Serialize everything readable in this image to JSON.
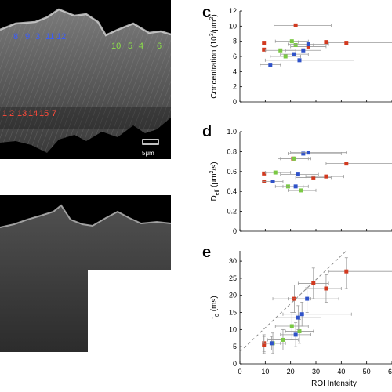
{
  "panels": {
    "c": "c",
    "d": "d",
    "e": "e"
  },
  "micrograph": {
    "scale_bar_label": "5μm",
    "labels_blue": [
      "8",
      "9",
      "3",
      "11",
      "12"
    ],
    "labels_green": [
      "10",
      "5",
      "4",
      "6"
    ],
    "labels_red": [
      "1",
      "2",
      "13",
      "14",
      "15",
      "7"
    ]
  },
  "colors": {
    "red": "#d2391f",
    "green": "#7ac943",
    "blue": "#2f52c9",
    "errorbar": "#9a9a9a"
  },
  "shared_x": {
    "xlabel": "ROI Intensity",
    "ticks": [
      "0",
      "10",
      "20",
      "30",
      "40",
      "50",
      "60"
    ],
    "xlim": [
      0,
      60
    ]
  },
  "chart_data": [
    {
      "id": "c",
      "type": "scatter",
      "ylabel": "Concentration (10",
      "ylabel_sup": "3",
      "ylabel_mid": "/μm",
      "ylabel_sup2": "2",
      "ylabel_end": ")",
      "ylim": [
        0,
        12
      ],
      "yticks": [
        "0",
        "2",
        "4",
        "6",
        "8",
        "10",
        "12"
      ],
      "series": [
        {
          "color": "red",
          "points": [
            {
              "x": 9.5,
              "y": 7.8,
              "xerr": [
                9.5,
                9.5
              ]
            },
            {
              "x": 9.5,
              "y": 6.9,
              "xerr": [
                9.5,
                9.5
              ]
            },
            {
              "x": 22,
              "y": 10.1,
              "xerr": [
                13.5,
                36
              ]
            },
            {
              "x": 27,
              "y": 7.3,
              "xerr": [
                20,
                34
              ]
            },
            {
              "x": 34,
              "y": 7.9,
              "xerr": [
                23,
                45
              ]
            },
            {
              "x": 42,
              "y": 7.8,
              "xerr": [
                35,
                62
              ]
            }
          ]
        },
        {
          "color": "green",
          "points": [
            {
              "x": 16,
              "y": 6.8,
              "xerr": [
                10,
                22
              ]
            },
            {
              "x": 18,
              "y": 6.0,
              "xerr": [
                12,
                24
              ]
            },
            {
              "x": 20.5,
              "y": 8.0,
              "xerr": [
                14,
                27
              ]
            },
            {
              "x": 22,
              "y": 7.5,
              "xerr": [
                15,
                29
              ]
            }
          ]
        },
        {
          "color": "blue",
          "points": [
            {
              "x": 12,
              "y": 4.9,
              "xerr": [
                8,
                16
              ]
            },
            {
              "x": 21.5,
              "y": 6.3,
              "xerr": [
                16,
                27
              ]
            },
            {
              "x": 23.5,
              "y": 5.5,
              "xerr": [
                10,
                45
              ]
            },
            {
              "x": 25,
              "y": 6.8,
              "xerr": [
                18,
                32
              ]
            },
            {
              "x": 27,
              "y": 7.6,
              "xerr": [
                19,
                35
              ]
            }
          ]
        }
      ]
    },
    {
      "id": "d",
      "type": "scatter",
      "ylabel": "D",
      "ylabel_sub": "eff",
      "ylabel_mid": " (μm",
      "ylabel_sup": "2",
      "ylabel_end": "/s)",
      "ylim": [
        0,
        1.0
      ],
      "yticks": [
        "0",
        "0.2",
        "0.4",
        "0.6",
        "0.8",
        "1.0"
      ],
      "series": [
        {
          "color": "red",
          "points": [
            {
              "x": 9.5,
              "y": 0.58,
              "xerr": [
                9.5,
                9.5
              ]
            },
            {
              "x": 9.5,
              "y": 0.5,
              "xerr": [
                9.5,
                9.5
              ]
            },
            {
              "x": 21,
              "y": 0.73,
              "xerr": [
                15,
                28
              ]
            },
            {
              "x": 29,
              "y": 0.54,
              "xerr": [
                22,
                36
              ]
            },
            {
              "x": 34,
              "y": 0.55,
              "xerr": [
                26,
                41
              ]
            },
            {
              "x": 42,
              "y": 0.68,
              "xerr": [
                34,
                62
              ]
            }
          ]
        },
        {
          "color": "green",
          "points": [
            {
              "x": 14,
              "y": 0.59,
              "xerr": [
                10,
                20
              ]
            },
            {
              "x": 19,
              "y": 0.45,
              "xerr": [
                14,
                25
              ]
            },
            {
              "x": 21.5,
              "y": 0.73,
              "xerr": [
                16,
                27
              ]
            },
            {
              "x": 24,
              "y": 0.41,
              "xerr": [
                19,
                30
              ]
            }
          ]
        },
        {
          "color": "blue",
          "points": [
            {
              "x": 13,
              "y": 0.5,
              "xerr": [
                9,
                17
              ]
            },
            {
              "x": 22,
              "y": 0.45,
              "xerr": [
                17,
                27
              ]
            },
            {
              "x": 23,
              "y": 0.57,
              "xerr": [
                16,
                31
              ]
            },
            {
              "x": 25,
              "y": 0.78,
              "xerr": [
                19,
                40
              ]
            },
            {
              "x": 27,
              "y": 0.79,
              "xerr": [
                20,
                42
              ]
            }
          ]
        }
      ]
    },
    {
      "id": "e",
      "type": "scatter",
      "ylabel": "t",
      "ylabel_sub": "0",
      "ylabel_end": " (ms)",
      "ylim": [
        0,
        33
      ],
      "yticks": [
        "0",
        "5",
        "10",
        "15",
        "20",
        "25",
        "30"
      ],
      "fit_line": {
        "x": [
          0,
          42
        ],
        "y": [
          3.5,
          33
        ]
      },
      "series": [
        {
          "color": "red",
          "points": [
            {
              "x": 9.5,
              "y": 6.0,
              "xerr": [
                9.5,
                9.5
              ],
              "yerr": [
                3.5,
                8.5
              ]
            },
            {
              "x": 9.5,
              "y": 5.5,
              "xerr": [
                9.5,
                9.5
              ],
              "yerr": [
                3.0,
                8.0
              ]
            },
            {
              "x": 21.5,
              "y": 19.0,
              "xerr": [
                13,
                28
              ],
              "yerr": [
                15,
                23
              ]
            },
            {
              "x": 29,
              "y": 23.5,
              "xerr": [
                23,
                35
              ],
              "yerr": [
                19,
                28
              ]
            },
            {
              "x": 34,
              "y": 22.0,
              "xerr": [
                26,
                40
              ],
              "yerr": [
                18,
                26
              ]
            },
            {
              "x": 42,
              "y": 27.0,
              "xerr": [
                35,
                62
              ],
              "yerr": [
                22,
                31
              ]
            }
          ]
        },
        {
          "color": "green",
          "points": [
            {
              "x": 13,
              "y": 6.0,
              "xerr": [
                9,
                18
              ],
              "yerr": [
                3,
                9
              ]
            },
            {
              "x": 17,
              "y": 7.0,
              "xerr": [
                11,
                23
              ],
              "yerr": [
                4,
                10
              ]
            },
            {
              "x": 20.5,
              "y": 11.0,
              "xerr": [
                14,
                27
              ],
              "yerr": [
                7,
                15
              ]
            },
            {
              "x": 23.5,
              "y": 9.5,
              "xerr": [
                18,
                29
              ],
              "yerr": [
                6,
                13
              ]
            }
          ]
        },
        {
          "color": "blue",
          "points": [
            {
              "x": 12.5,
              "y": 6.0,
              "xerr": [
                9,
                16
              ],
              "yerr": [
                4,
                8
              ]
            },
            {
              "x": 22,
              "y": 8.5,
              "xerr": [
                16,
                28
              ],
              "yerr": [
                5,
                12
              ]
            },
            {
              "x": 23,
              "y": 13.5,
              "xerr": [
                15,
                32
              ],
              "yerr": [
                10,
                17
              ]
            },
            {
              "x": 24.5,
              "y": 14.5,
              "xerr": [
                17,
                44
              ],
              "yerr": [
                11,
                18
              ]
            },
            {
              "x": 26.5,
              "y": 19.0,
              "xerr": [
                19,
                39
              ],
              "yerr": [
                15,
                23
              ]
            }
          ]
        }
      ]
    }
  ]
}
